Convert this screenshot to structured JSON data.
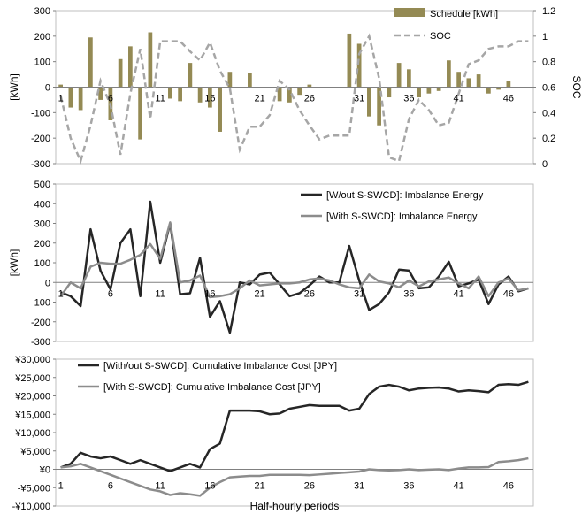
{
  "chart_data": [
    {
      "type": "bar+line",
      "ylabel": "[kWh]",
      "ylabel_right": "SOC",
      "ylim": [
        -300,
        300
      ],
      "yticks": [
        -300,
        -200,
        -100,
        0,
        100,
        200,
        300
      ],
      "ylim_right": [
        0,
        1.2
      ],
      "yticks_right": [
        "0",
        "0.2",
        "0.4",
        "0.6",
        "0.8",
        "1",
        "1.2"
      ],
      "xtick_labels": [
        "1",
        "6",
        "11",
        "16",
        "21",
        "26",
        "31",
        "36",
        "41",
        "46"
      ],
      "legend": [
        "Schedule [kWh]",
        "SOC"
      ],
      "colors": {
        "schedule": "#948a54",
        "soc": "#a6a6a6"
      },
      "series": [
        {
          "name": "Schedule [kWh]",
          "values": [
            10,
            -80,
            -90,
            195,
            -50,
            -130,
            110,
            160,
            -205,
            215,
            0,
            -45,
            -55,
            95,
            -60,
            -80,
            -175,
            60,
            0,
            55,
            0,
            0,
            -55,
            -60,
            -30,
            10,
            0,
            0,
            0,
            210,
            170,
            -115,
            -150,
            -40,
            95,
            70,
            -40,
            -25,
            -15,
            105,
            60,
            35,
            50,
            -25,
            -10,
            25,
            0,
            0
          ]
        },
        {
          "name": "SOC",
          "values": [
            0.53,
            0.2,
            0.02,
            0.3,
            0.65,
            0.46,
            0.07,
            0.55,
            0.9,
            0.35,
            0.96,
            0.96,
            0.96,
            0.88,
            0.81,
            0.95,
            0.73,
            0.59,
            0.11,
            0.29,
            0.29,
            0.38,
            0.65,
            0.58,
            0.42,
            0.3,
            0.19,
            0.22,
            0.22,
            0.22,
            0.86,
            1.0,
            0.67,
            0.05,
            0.02,
            0.35,
            0.5,
            0.42,
            0.3,
            0.32,
            0.55,
            0.78,
            0.81,
            0.9,
            0.92,
            0.92,
            0.96,
            0.96
          ]
        }
      ]
    },
    {
      "type": "line",
      "ylabel": "[kWh]",
      "ylim": [
        -300,
        500
      ],
      "yticks": [
        -300,
        -200,
        -100,
        0,
        100,
        200,
        300,
        400,
        500
      ],
      "xtick_labels": [
        "1",
        "6",
        "11",
        "16",
        "21",
        "26",
        "31",
        "36",
        "41",
        "46"
      ],
      "colors": {
        "without": "#262626",
        "with": "#8c8c8c"
      },
      "series": [
        {
          "name": "[W/out S-SWCD]: Imbalance Energy",
          "values": [
            -50,
            -70,
            -120,
            270,
            60,
            -35,
            200,
            270,
            -70,
            410,
            100,
            300,
            -60,
            -55,
            125,
            -175,
            -95,
            -255,
            0,
            -10,
            40,
            50,
            -10,
            -70,
            -55,
            -15,
            30,
            0,
            0,
            185,
            10,
            -140,
            -110,
            -50,
            65,
            60,
            -30,
            -25,
            30,
            105,
            -20,
            -5,
            15,
            -110,
            -10,
            30,
            -45,
            -30
          ]
        },
        {
          "name": "[With S-SWCD]: Imbalance Energy",
          "values": [
            -70,
            0,
            -30,
            80,
            100,
            95,
            95,
            115,
            140,
            195,
            120,
            305,
            0,
            10,
            35,
            -75,
            -70,
            -60,
            -30,
            10,
            -15,
            -10,
            -5,
            -5,
            0,
            15,
            20,
            10,
            -10,
            -25,
            -30,
            40,
            5,
            -5,
            -25,
            10,
            -20,
            5,
            15,
            25,
            -5,
            -30,
            30,
            -70,
            0,
            20,
            -40,
            -30
          ]
        }
      ]
    },
    {
      "type": "line",
      "xlabel": "Half-hourly periods",
      "ylim": [
        -10000,
        30000
      ],
      "yticks": [
        -10000,
        -5000,
        0,
        5000,
        10000,
        15000,
        20000,
        25000,
        30000
      ],
      "ytick_labels": [
        "-¥10,000",
        "-¥5,000",
        "¥0",
        "¥5,000",
        "¥10,000",
        "¥15,000",
        "¥20,000",
        "¥25,000",
        "¥30,000"
      ],
      "xtick_labels": [
        "1",
        "6",
        "11",
        "16",
        "21",
        "26",
        "31",
        "36",
        "41",
        "46"
      ],
      "colors": {
        "without": "#262626",
        "with": "#8c8c8c"
      },
      "series": [
        {
          "name": "[With/out S-SWCD]: Cumulative Imbalance Cost [JPY]",
          "values": [
            500,
            1500,
            4500,
            3500,
            3000,
            3500,
            2500,
            1500,
            2500,
            1500,
            500,
            -500,
            500,
            1500,
            500,
            5500,
            7000,
            16000,
            16000,
            16000,
            15800,
            15000,
            15200,
            16500,
            17000,
            17500,
            17300,
            17300,
            17300,
            16000,
            16500,
            20500,
            22500,
            23000,
            22500,
            21500,
            22000,
            22200,
            22300,
            22000,
            21200,
            21500,
            21300,
            21000,
            23000,
            23200,
            23000,
            23800
          ]
        },
        {
          "name": "[With S-SWCD]: Cumulative Imbalance Cost [JPY]",
          "values": [
            500,
            800,
            1500,
            500,
            -500,
            -1500,
            -2500,
            -3500,
            -4500,
            -5500,
            -6000,
            -7000,
            -6500,
            -6800,
            -7200,
            -5000,
            -3500,
            -2200,
            -2000,
            -1800,
            -1800,
            -1500,
            -1500,
            -1500,
            -1500,
            -1600,
            -1400,
            -1200,
            -1000,
            -800,
            -600,
            0,
            -200,
            -300,
            -200,
            0,
            -200,
            -100,
            0,
            -200,
            200,
            500,
            500,
            600,
            2000,
            2200,
            2500,
            3000
          ]
        }
      ]
    }
  ]
}
